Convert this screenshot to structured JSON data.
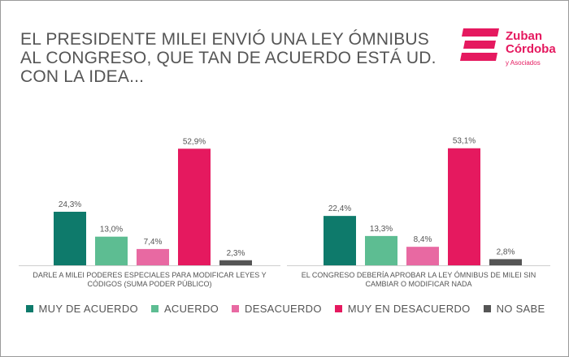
{
  "title": "EL PRESIDENTE MILEI ENVIÓ UNA LEY ÓMNIBUS AL CONGRESO, QUE TAN DE ACUERDO ESTÁ UD. CON LA IDEA...",
  "logo": {
    "line1": "Zuban",
    "line2": "Córdoba",
    "sub": "y Asociados",
    "color": "#e5195f"
  },
  "chart_data": {
    "type": "bar",
    "title": "EL PRESIDENTE MILEI ENVIÓ UNA LEY ÓMNIBUS AL CONGRESO, QUE TAN DE ACUERDO ESTÁ UD. CON LA IDEA...",
    "categories": [
      "DARLE A MILEI PODERES ESPECIALES PARA MODIFICAR LEYES Y CÓDIGOS (SUMA PODER PÚBLICO)",
      "EL CONGRESO DEBERÍA APROBAR LA LEY ÓMNIBUS DE MILEI SIN CAMBIAR O MODIFICAR NADA"
    ],
    "series": [
      {
        "name": "MUY DE ACUERDO",
        "color": "#0e7a6b",
        "values": [
          24.3,
          22.4
        ],
        "labels": [
          "24,3%",
          "22,4%"
        ]
      },
      {
        "name": "ACUERDO",
        "color": "#5dbd92",
        "values": [
          13.0,
          13.3
        ],
        "labels": [
          "13,0%",
          "13,3%"
        ]
      },
      {
        "name": "DESACUERDO",
        "color": "#e869a2",
        "values": [
          7.4,
          8.4
        ],
        "labels": [
          "7,4%",
          "8,4%"
        ]
      },
      {
        "name": "MUY EN DESACUERDO",
        "color": "#e5195f",
        "values": [
          52.9,
          53.1
        ],
        "labels": [
          "52,9%",
          "53,1%"
        ]
      },
      {
        "name": "NO SABE",
        "color": "#555555",
        "values": [
          2.3,
          2.8
        ],
        "labels": [
          "2,3%",
          "2,8%"
        ]
      }
    ],
    "ylim": [
      0,
      60
    ],
    "grid": false,
    "legend_position": "bottom"
  }
}
